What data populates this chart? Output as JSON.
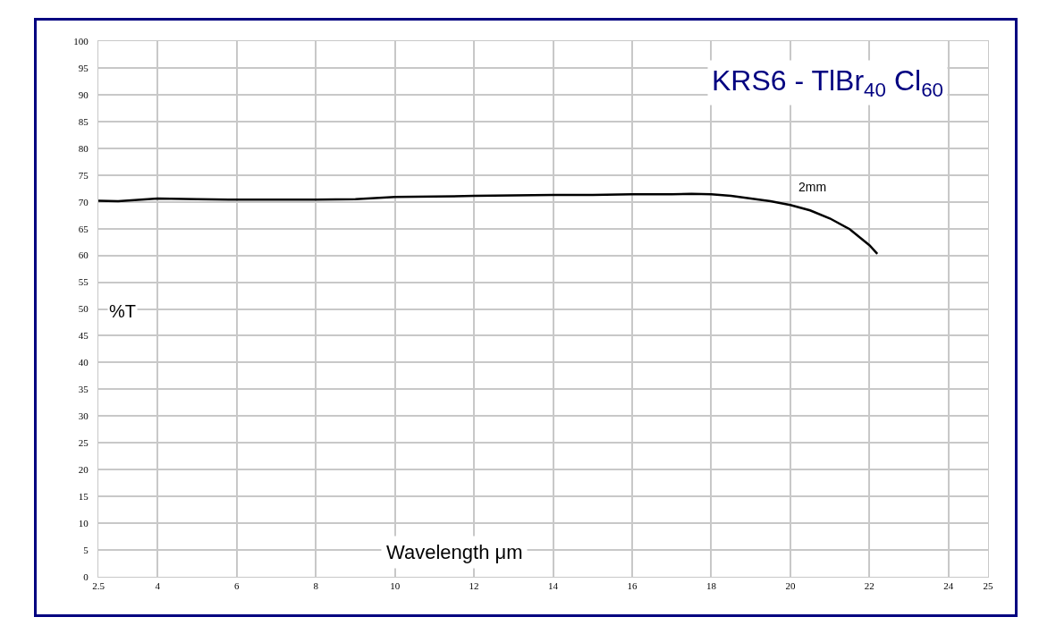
{
  "chart_data": {
    "type": "line",
    "title": "KRS6 - TlBr$_{40}$ Cl$_{60}$",
    "xlabel": "Wavelength μm",
    "ylabel": "%T",
    "x": [
      2.5,
      3,
      4,
      5,
      6,
      7,
      8,
      9,
      10,
      11,
      12,
      13,
      14,
      15,
      16,
      17,
      17.5,
      18,
      18.5,
      19,
      19.5,
      20,
      20.5,
      21,
      21.5,
      22,
      22.2
    ],
    "series": [
      {
        "color": "#000000",
        "values": [
          70.2,
          70.1,
          70.6,
          70.5,
          70.4,
          70.4,
          70.4,
          70.5,
          70.9,
          71.0,
          71.1,
          71.2,
          71.3,
          71.3,
          71.4,
          71.4,
          71.5,
          71.4,
          71.1,
          70.6,
          70.1,
          69.4,
          68.4,
          66.9,
          64.9,
          61.9,
          60.3
        ]
      }
    ],
    "annotations": [
      "2mm"
    ],
    "xlim": [
      2.5,
      25
    ],
    "xticks": [
      2.5,
      4,
      6,
      8,
      10,
      12,
      14,
      16,
      18,
      20,
      22,
      24,
      25
    ],
    "ylim": [
      0,
      100
    ],
    "yticks": [
      0,
      5,
      10,
      15,
      20,
      25,
      30,
      35,
      40,
      45,
      50,
      55,
      60,
      65,
      70,
      75,
      80,
      85,
      90,
      95,
      100
    ],
    "grid": true
  }
}
